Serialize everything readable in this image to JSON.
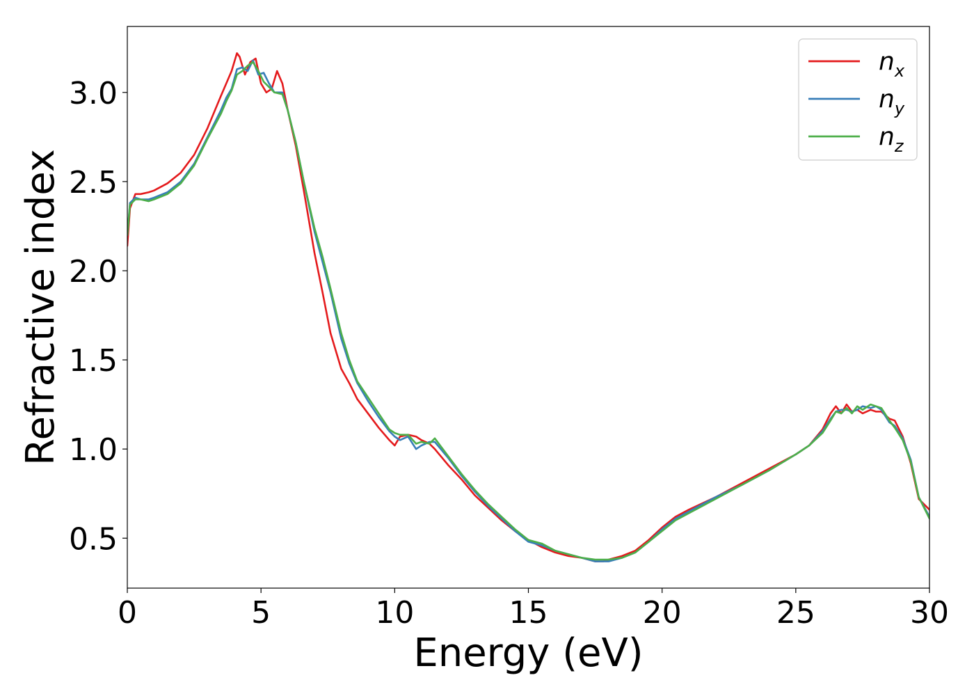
{
  "chart_data": {
    "type": "line",
    "title": "",
    "xlabel": "Energy (eV)",
    "ylabel": "Refractive index",
    "xlim": [
      0,
      30
    ],
    "ylim": [
      0.22,
      3.37
    ],
    "xticks": [
      0,
      5,
      10,
      15,
      20,
      25,
      30
    ],
    "xtick_labels": [
      "0",
      "5",
      "10",
      "15",
      "20",
      "25",
      "30"
    ],
    "yticks": [
      0.5,
      1.0,
      1.5,
      2.0,
      2.5,
      3.0
    ],
    "ytick_labels": [
      "0.5",
      "1.0",
      "1.5",
      "2.0",
      "2.5",
      "3.0"
    ],
    "grid": false,
    "legend_position": "top-right",
    "series": [
      {
        "name": "n_x",
        "label_base": "n",
        "label_sub": "x",
        "color": "#e41a1c",
        "x": [
          0,
          0.1,
          0.3,
          0.5,
          0.8,
          1.0,
          1.5,
          2.0,
          2.5,
          3.0,
          3.5,
          3.7,
          3.9,
          4.1,
          4.2,
          4.4,
          4.6,
          4.8,
          5.0,
          5.2,
          5.4,
          5.6,
          5.8,
          6.0,
          6.3,
          6.6,
          7.0,
          7.3,
          7.6,
          8.0,
          8.3,
          8.6,
          9.0,
          9.4,
          9.8,
          10.0,
          10.2,
          10.5,
          10.8,
          11.0,
          11.3,
          11.5,
          12.0,
          12.5,
          13.0,
          13.5,
          14.0,
          14.5,
          15.0,
          15.5,
          16.0,
          16.5,
          17.0,
          17.5,
          17.8,
          18.0,
          18.5,
          19.0,
          19.5,
          20.0,
          20.5,
          21.0,
          22.0,
          23.0,
          24.0,
          25.0,
          25.5,
          26.0,
          26.3,
          26.5,
          26.7,
          26.9,
          27.1,
          27.3,
          27.5,
          27.8,
          28.0,
          28.2,
          28.5,
          28.7,
          29.0,
          29.3,
          29.6,
          30.0
        ],
        "y": [
          2.14,
          2.35,
          2.43,
          2.43,
          2.44,
          2.45,
          2.49,
          2.55,
          2.65,
          2.8,
          2.98,
          3.05,
          3.12,
          3.22,
          3.2,
          3.1,
          3.17,
          3.19,
          3.05,
          3.0,
          3.02,
          3.12,
          3.05,
          2.9,
          2.7,
          2.45,
          2.1,
          1.88,
          1.65,
          1.45,
          1.37,
          1.28,
          1.2,
          1.12,
          1.05,
          1.02,
          1.07,
          1.08,
          1.07,
          1.05,
          1.03,
          1.0,
          0.91,
          0.83,
          0.74,
          0.67,
          0.6,
          0.54,
          0.49,
          0.45,
          0.42,
          0.4,
          0.39,
          0.37,
          0.37,
          0.38,
          0.4,
          0.43,
          0.49,
          0.56,
          0.62,
          0.66,
          0.73,
          0.81,
          0.89,
          0.97,
          1.02,
          1.11,
          1.2,
          1.24,
          1.2,
          1.25,
          1.21,
          1.22,
          1.2,
          1.22,
          1.21,
          1.21,
          1.17,
          1.16,
          1.07,
          0.92,
          0.72,
          0.66
        ]
      },
      {
        "name": "n_y",
        "label_base": "n",
        "label_sub": "y",
        "color": "#377eb8",
        "x": [
          0,
          0.1,
          0.3,
          0.5,
          0.8,
          1.0,
          1.5,
          2.0,
          2.5,
          3.0,
          3.5,
          3.7,
          3.9,
          4.1,
          4.3,
          4.5,
          4.7,
          4.9,
          5.1,
          5.3,
          5.5,
          5.8,
          6.0,
          6.3,
          6.6,
          7.0,
          7.3,
          7.6,
          8.0,
          8.3,
          8.6,
          9.0,
          9.4,
          9.8,
          10.0,
          10.2,
          10.5,
          10.8,
          11.0,
          11.3,
          11.5,
          12.0,
          12.5,
          13.0,
          13.5,
          14.0,
          14.5,
          15.0,
          15.5,
          16.0,
          16.5,
          17.0,
          17.5,
          18.0,
          18.5,
          19.0,
          19.5,
          20.0,
          20.5,
          21.0,
          22.0,
          23.0,
          24.0,
          25.0,
          25.5,
          26.0,
          26.3,
          26.5,
          26.7,
          26.9,
          27.1,
          27.3,
          27.5,
          27.8,
          28.0,
          28.2,
          28.5,
          28.7,
          29.0,
          29.3,
          29.6,
          30.0
        ],
        "y": [
          2.2,
          2.38,
          2.41,
          2.4,
          2.4,
          2.41,
          2.44,
          2.5,
          2.6,
          2.75,
          2.9,
          2.97,
          3.02,
          3.13,
          3.14,
          3.12,
          3.18,
          3.1,
          3.11,
          3.05,
          3.0,
          3.0,
          2.9,
          2.72,
          2.5,
          2.22,
          2.05,
          1.88,
          1.62,
          1.48,
          1.37,
          1.27,
          1.18,
          1.1,
          1.07,
          1.05,
          1.07,
          1.0,
          1.02,
          1.04,
          1.04,
          0.95,
          0.85,
          0.76,
          0.68,
          0.61,
          0.54,
          0.48,
          0.46,
          0.43,
          0.41,
          0.39,
          0.37,
          0.37,
          0.39,
          0.42,
          0.48,
          0.55,
          0.61,
          0.65,
          0.73,
          0.8,
          0.88,
          0.97,
          1.02,
          1.1,
          1.17,
          1.21,
          1.22,
          1.22,
          1.21,
          1.22,
          1.24,
          1.23,
          1.24,
          1.22,
          1.15,
          1.13,
          1.06,
          0.94,
          0.73,
          0.62
        ]
      },
      {
        "name": "n_z",
        "label_base": "n",
        "label_sub": "z",
        "color": "#4daf4a",
        "x": [
          0,
          0.1,
          0.3,
          0.5,
          0.8,
          1.0,
          1.5,
          2.0,
          2.5,
          3.0,
          3.5,
          3.7,
          3.9,
          4.1,
          4.3,
          4.5,
          4.7,
          4.9,
          5.1,
          5.3,
          5.5,
          5.8,
          6.0,
          6.3,
          6.6,
          7.0,
          7.3,
          7.6,
          8.0,
          8.3,
          8.6,
          9.0,
          9.4,
          9.8,
          10.0,
          10.2,
          10.5,
          10.8,
          11.0,
          11.3,
          11.5,
          12.0,
          12.5,
          13.0,
          13.5,
          14.0,
          14.5,
          15.0,
          15.5,
          16.0,
          16.5,
          17.0,
          17.5,
          18.0,
          18.5,
          19.0,
          19.5,
          20.0,
          20.5,
          21.0,
          22.0,
          23.0,
          24.0,
          25.0,
          25.5,
          26.0,
          26.3,
          26.5,
          26.7,
          26.9,
          27.1,
          27.3,
          27.5,
          27.8,
          28.0,
          28.2,
          28.5,
          28.7,
          29.0,
          29.3,
          29.6,
          30.0
        ],
        "y": [
          2.2,
          2.37,
          2.4,
          2.4,
          2.39,
          2.4,
          2.43,
          2.49,
          2.59,
          2.74,
          2.88,
          2.95,
          3.01,
          3.1,
          3.12,
          3.15,
          3.17,
          3.12,
          3.06,
          3.03,
          3.0,
          2.99,
          2.9,
          2.72,
          2.5,
          2.24,
          2.08,
          1.9,
          1.65,
          1.5,
          1.38,
          1.29,
          1.2,
          1.11,
          1.09,
          1.08,
          1.08,
          1.03,
          1.04,
          1.03,
          1.06,
          0.96,
          0.86,
          0.77,
          0.69,
          0.62,
          0.55,
          0.49,
          0.47,
          0.43,
          0.41,
          0.39,
          0.38,
          0.38,
          0.39,
          0.42,
          0.48,
          0.54,
          0.6,
          0.64,
          0.72,
          0.8,
          0.88,
          0.97,
          1.02,
          1.09,
          1.16,
          1.21,
          1.2,
          1.23,
          1.2,
          1.24,
          1.22,
          1.25,
          1.24,
          1.23,
          1.16,
          1.12,
          1.05,
          0.93,
          0.73,
          0.61
        ]
      }
    ]
  }
}
